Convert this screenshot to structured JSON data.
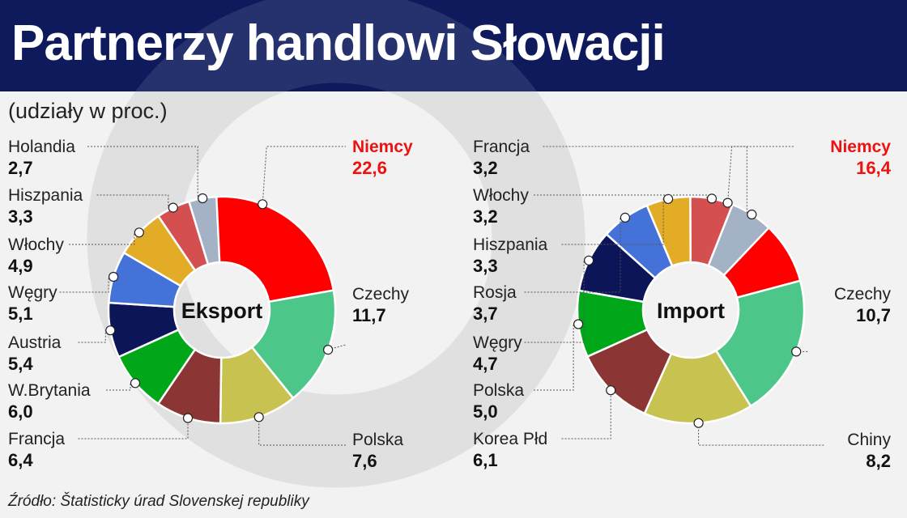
{
  "title": "Partnerzy handlowi Słowacji",
  "subtitle": "(udziały w proc.)",
  "source": "Źródło: Štatisticky úrad Slovenskej republiky",
  "colors": {
    "header": "#0f1a5c",
    "background": "#f2f2f2",
    "highlight_text": "#ee1111"
  },
  "chart_data": [
    {
      "type": "pie",
      "donut": true,
      "center_label": "Eksport",
      "slices": [
        {
          "label": "Niemcy",
          "value": 22.6,
          "display": "22,6",
          "color": "#ff0000",
          "highlight": true
        },
        {
          "label": "Czechy",
          "value": 11.7,
          "display": "11,7",
          "color": "#4cc789"
        },
        {
          "label": "Polska",
          "value": 7.6,
          "display": "7,6",
          "color": "#c8c250"
        },
        {
          "label": "Francja",
          "value": 6.4,
          "display": "6,4",
          "color": "#8b3535"
        },
        {
          "label": "W.Brytania",
          "value": 6.0,
          "display": "6,0",
          "color": "#00a819"
        },
        {
          "label": "Austria",
          "value": 5.4,
          "display": "5,4",
          "color": "#0b1558"
        },
        {
          "label": "Węgry",
          "value": 5.1,
          "display": "5,1",
          "color": "#4472d9"
        },
        {
          "label": "Włochy",
          "value": 4.9,
          "display": "4,9",
          "color": "#e2ac27"
        },
        {
          "label": "Hiszpania",
          "value": 3.3,
          "display": "3,3",
          "color": "#d45050"
        },
        {
          "label": "Holandia",
          "value": 2.7,
          "display": "2,7",
          "color": "#a3b2c5"
        }
      ]
    },
    {
      "type": "pie",
      "donut": true,
      "center_label": "Import",
      "slices": [
        {
          "label": "Niemcy",
          "value": 16.4,
          "display": "16,4",
          "color": "#ff0000",
          "highlight": true
        },
        {
          "label": "Czechy",
          "value": 10.7,
          "display": "10,7",
          "color": "#4cc789"
        },
        {
          "label": "Chiny",
          "value": 8.2,
          "display": "8,2",
          "color": "#c8c250"
        },
        {
          "label": "Korea Płd",
          "value": 6.1,
          "display": "6,1",
          "color": "#8b3535"
        },
        {
          "label": "Polska",
          "value": 5.0,
          "display": "5,0",
          "color": "#00a819"
        },
        {
          "label": "Węgry",
          "value": 4.7,
          "display": "4,7",
          "color": "#0b1558"
        },
        {
          "label": "Rosja",
          "value": 3.7,
          "display": "3,7",
          "color": "#4472d9"
        },
        {
          "label": "Hiszpania",
          "value": 3.3,
          "display": "3,3",
          "color": "#e2ac27"
        },
        {
          "label": "Włochy",
          "value": 3.2,
          "display": "3,2",
          "color": "#d45050"
        },
        {
          "label": "Francja",
          "value": 3.2,
          "display": "3,2",
          "color": "#a3b2c5"
        }
      ]
    }
  ]
}
